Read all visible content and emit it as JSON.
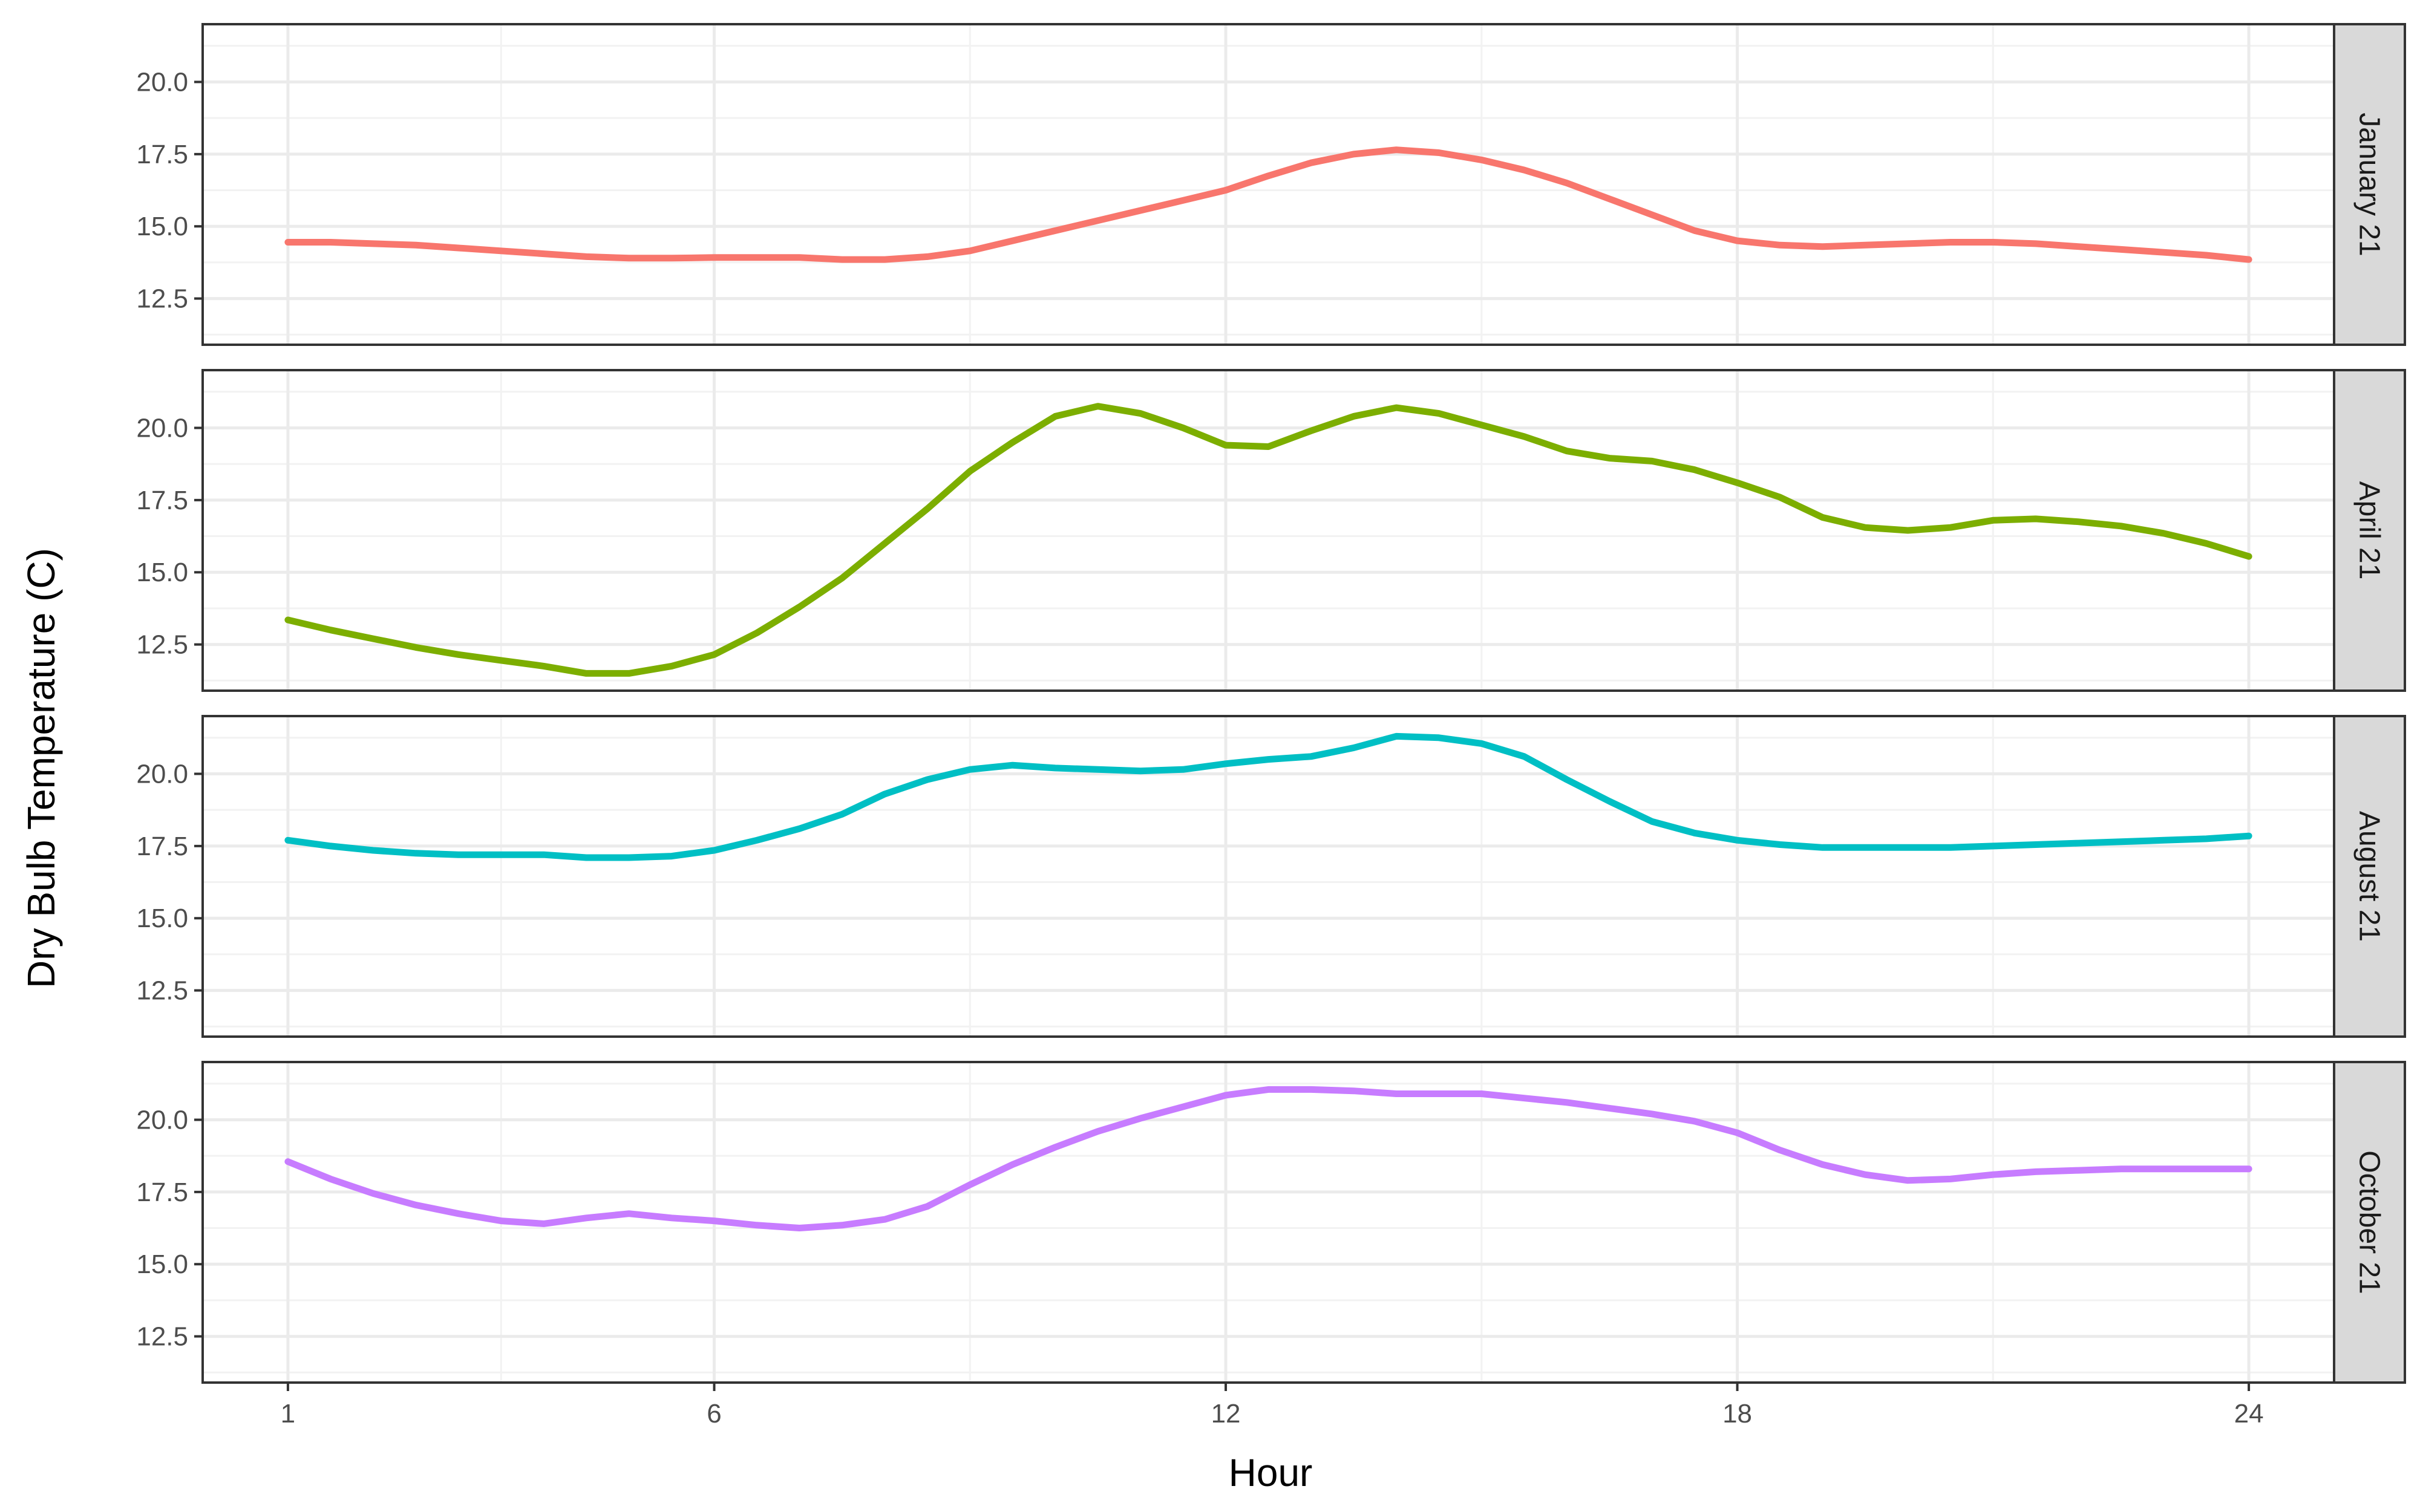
{
  "chart_data": {
    "type": "line",
    "xlabel": "Hour",
    "ylabel": "Dry Bulb Temperature (C)",
    "xlim": [
      0,
      25
    ],
    "ylim": [
      10.9,
      22.0
    ],
    "x_ticks": [
      1,
      6,
      12,
      18,
      24
    ],
    "y_ticks": [
      12.5,
      15.0,
      17.5,
      20.0
    ],
    "y_tick_labels": [
      "12.5",
      "15.0",
      "17.5",
      "20.0"
    ],
    "grid": true,
    "layout": "facets stacked vertically, labels on right strip",
    "x": [
      1,
      1.5,
      2,
      2.5,
      3,
      3.5,
      4,
      4.5,
      5,
      5.5,
      6,
      6.5,
      7,
      7.5,
      8,
      8.5,
      9,
      9.5,
      10,
      10.5,
      11,
      11.5,
      12,
      12.5,
      13,
      13.5,
      14,
      14.5,
      15,
      15.5,
      16,
      16.5,
      17,
      17.5,
      18,
      18.5,
      19,
      19.5,
      20,
      20.5,
      21,
      21.5,
      22,
      22.5,
      23,
      23.5,
      24
    ],
    "series": [
      {
        "name": "January 21",
        "color": "#F8766D",
        "values": [
          14.45,
          14.45,
          14.4,
          14.35,
          14.25,
          14.15,
          14.05,
          13.95,
          13.9,
          13.9,
          13.92,
          13.92,
          13.92,
          13.85,
          13.85,
          13.95,
          14.15,
          14.5,
          14.85,
          15.2,
          15.55,
          15.9,
          16.25,
          16.75,
          17.2,
          17.5,
          17.65,
          17.55,
          17.3,
          16.95,
          16.5,
          15.95,
          15.4,
          14.85,
          14.5,
          14.35,
          14.3,
          14.35,
          14.4,
          14.45,
          14.45,
          14.4,
          14.3,
          14.2,
          14.1,
          14.0,
          13.85
        ]
      },
      {
        "name": "April 21",
        "color": "#7CAE00",
        "values": [
          13.35,
          13.0,
          12.7,
          12.4,
          12.15,
          11.95,
          11.75,
          11.5,
          11.5,
          11.75,
          12.15,
          12.9,
          13.8,
          14.8,
          16.0,
          17.2,
          18.5,
          19.5,
          20.4,
          20.75,
          20.5,
          20.0,
          19.4,
          19.35,
          19.9,
          20.4,
          20.7,
          20.5,
          20.1,
          19.7,
          19.2,
          18.95,
          18.85,
          18.55,
          18.1,
          17.6,
          16.9,
          16.55,
          16.45,
          16.55,
          16.8,
          16.85,
          16.75,
          16.6,
          16.35,
          16.0,
          15.55
        ]
      },
      {
        "name": "August 21",
        "color": "#00BFC4",
        "values": [
          17.7,
          17.5,
          17.35,
          17.25,
          17.2,
          17.2,
          17.2,
          17.1,
          17.1,
          17.15,
          17.35,
          17.7,
          18.1,
          18.6,
          19.3,
          19.8,
          20.15,
          20.3,
          20.2,
          20.15,
          20.1,
          20.15,
          20.35,
          20.5,
          20.6,
          20.9,
          21.3,
          21.25,
          21.05,
          20.6,
          19.8,
          19.05,
          18.35,
          17.95,
          17.7,
          17.55,
          17.45,
          17.45,
          17.45,
          17.45,
          17.5,
          17.55,
          17.6,
          17.65,
          17.7,
          17.75,
          17.85
        ]
      },
      {
        "name": "October 21",
        "color": "#C77CFF",
        "values": [
          18.55,
          17.95,
          17.45,
          17.05,
          16.75,
          16.5,
          16.4,
          16.6,
          16.75,
          16.6,
          16.5,
          16.35,
          16.25,
          16.35,
          16.55,
          17.0,
          17.75,
          18.45,
          19.05,
          19.6,
          20.05,
          20.45,
          20.85,
          21.05,
          21.05,
          21.0,
          20.9,
          20.9,
          20.9,
          20.75,
          20.6,
          20.4,
          20.2,
          19.95,
          19.55,
          18.95,
          18.45,
          18.1,
          17.9,
          17.95,
          18.1,
          18.2,
          18.25,
          18.3,
          18.3,
          18.3,
          18.3
        ]
      }
    ]
  }
}
